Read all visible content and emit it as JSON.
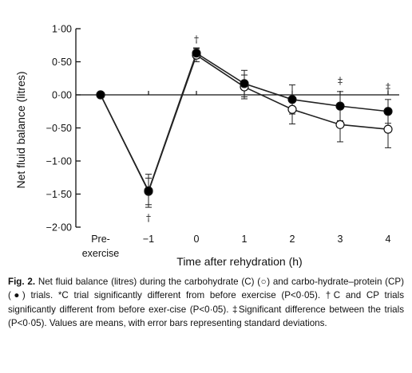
{
  "chart_data": {
    "type": "line",
    "title": "",
    "xlabel": "Time after rehydration (h)",
    "ylabel": "Net fluid balance (litres)",
    "ylim": [
      -2.0,
      1.0
    ],
    "yticks": [
      "1·00",
      "0·50",
      "0·00",
      "−0·50",
      "−1·00",
      "−1·50",
      "−2·00"
    ],
    "ytick_values": [
      1.0,
      0.5,
      0.0,
      -0.5,
      -1.0,
      -1.5,
      -2.0
    ],
    "categories": [
      "Pre-exercise",
      "−1",
      "0",
      "1",
      "2",
      "3",
      "4"
    ],
    "x_label_lines": [
      [
        "Pre-",
        "exercise"
      ],
      [
        "−1"
      ],
      [
        "0"
      ],
      [
        "1"
      ],
      [
        "2"
      ],
      [
        "3"
      ],
      [
        "4"
      ]
    ],
    "grid": false,
    "series": [
      {
        "name": "C",
        "marker": "open-circle",
        "values": [
          0.0,
          -1.46,
          0.6,
          0.12,
          -0.22,
          -0.45,
          -0.52
        ],
        "error": [
          0.0,
          0.2,
          0.1,
          0.18,
          0.22,
          0.26,
          0.28
        ]
      },
      {
        "name": "CP",
        "marker": "filled-circle",
        "values": [
          0.0,
          -1.45,
          0.63,
          0.17,
          -0.07,
          -0.17,
          -0.25
        ],
        "error": [
          0.0,
          0.25,
          0.08,
          0.2,
          0.22,
          0.22,
          0.18
        ]
      }
    ],
    "annotations": [
      {
        "text": "†",
        "category": "0",
        "y": 0.84
      },
      {
        "text": "†",
        "category": "−1",
        "y": -1.86
      },
      {
        "text": "‡",
        "category": "3",
        "y": 0.21
      },
      {
        "text": "‡",
        "category": "4",
        "y": 0.12
      }
    ]
  },
  "caption": {
    "label": "Fig. 2.",
    "text": "Net fluid balance (litres) during the carbohydrate (C) (○) and carbo-hydrate–protein (CP) (●) trials. *C trial significantly different from before exercise (P<0·05). †C and CP trials significantly different from before exer-cise (P<0·05). ‡Significant difference between the trials (P<0·05). Values are means, with error bars representing standard deviations."
  }
}
